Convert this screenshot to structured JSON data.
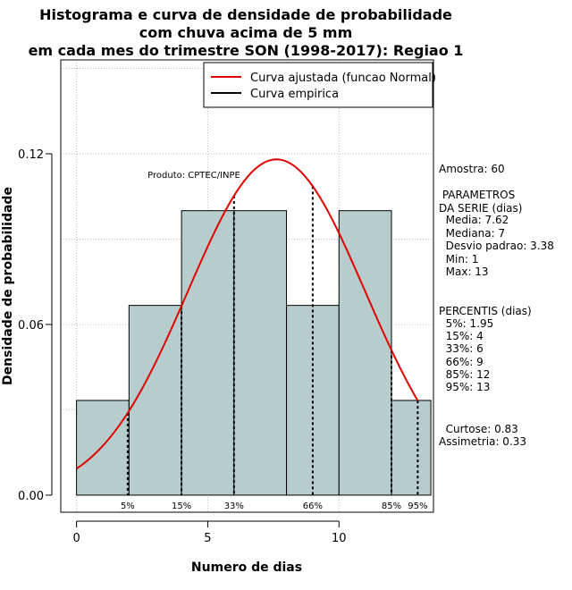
{
  "chart_data": {
    "type": "histogram",
    "title_lines": [
      "Histograma e curva de densidade de probabilidade",
      "com chuva acima de 5 mm",
      "em cada mes do trimestre SON (1998-2017): Regiao 1"
    ],
    "xlabel": "Numero de dias",
    "ylabel": "Densidade de probabilidade",
    "xlim": [
      -0.6,
      13.6
    ],
    "ylim": [
      -0.006,
      0.153
    ],
    "x_ticks": [
      0,
      5,
      10
    ],
    "y_ticks": [
      0.0,
      0.06,
      0.12
    ],
    "y_tick_labels": [
      "0.00",
      "0.06",
      "0.12"
    ],
    "grid": true,
    "bins": [
      {
        "start": 0,
        "end": 2,
        "density": 0.0333
      },
      {
        "start": 2,
        "end": 4,
        "density": 0.0667
      },
      {
        "start": 4,
        "end": 6,
        "density": 0.1
      },
      {
        "start": 6,
        "end": 8,
        "density": 0.1
      },
      {
        "start": 8,
        "end": 10,
        "density": 0.0667
      },
      {
        "start": 10,
        "end": 12,
        "density": 0.1
      },
      {
        "start": 12,
        "end": 13.5,
        "density": 0.0333
      }
    ],
    "bar_color": "#b7cdcd",
    "normal_curve": {
      "mean": 7.62,
      "sd": 3.38,
      "x_range": [
        0,
        13
      ],
      "color": "#e00000"
    },
    "percentile_lines": [
      {
        "label": "5%",
        "x": 1.95
      },
      {
        "label": "15%",
        "x": 4
      },
      {
        "label": "33%",
        "x": 6
      },
      {
        "label": "66%",
        "x": 9
      },
      {
        "label": "85%",
        "x": 12
      },
      {
        "label": "95%",
        "x": 13
      }
    ],
    "legend": {
      "position": "top-right",
      "entries": [
        {
          "label": "Curva ajustada (funcao Normal)",
          "color": "#e00000"
        },
        {
          "label": "Curva empirica",
          "color": "#000000"
        }
      ]
    },
    "annotation": "Produto: CPTEC/INPE"
  },
  "side_panel": {
    "lines": [
      "Amostra: 60",
      " PARAMETROS",
      "DA SERIE (dias)",
      "  Media: 7.62",
      "  Mediana: 7",
      "  Desvio padrao: 3.38",
      "  Min: 1",
      "  Max: 13",
      "PERCENTIS (dias)",
      "  5%: 1.95",
      "  15%: 4",
      "  33%: 6",
      "  66%: 9",
      "  85%: 12",
      "  95%: 13",
      "  Curtose: 0.83",
      "Assimetria: 0.33"
    ]
  }
}
